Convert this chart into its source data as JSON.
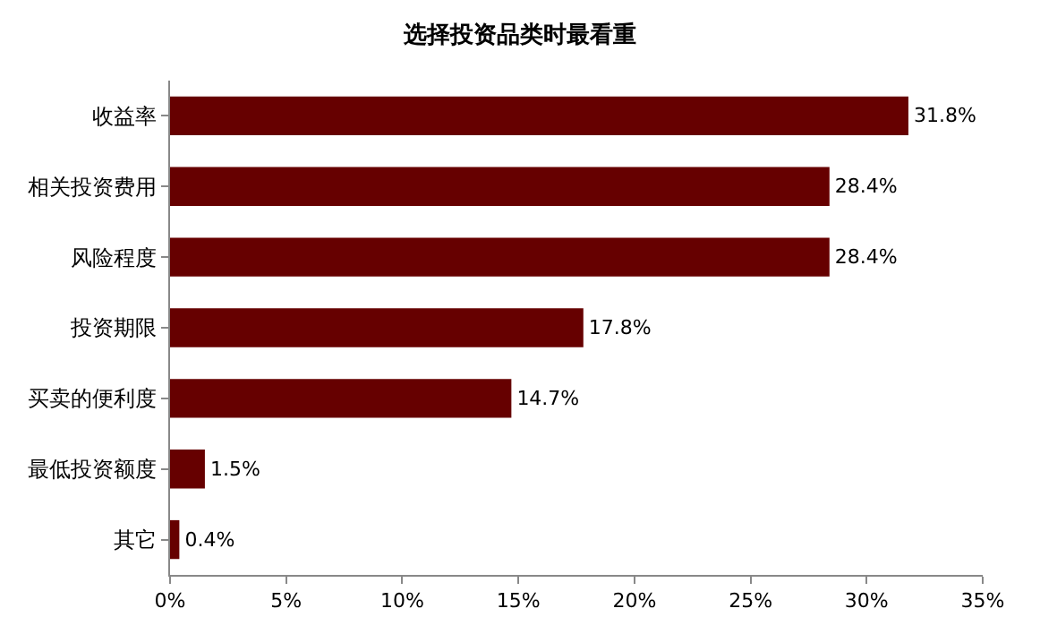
{
  "chart_data": {
    "type": "bar",
    "orientation": "horizontal",
    "title": "选择投资品类时最看重",
    "categories": [
      "收益率",
      "相关投资费用",
      "风险程度",
      "投资期限",
      "买卖的便利度",
      "最低投资额度",
      "其它"
    ],
    "values": [
      31.8,
      28.4,
      28.4,
      17.8,
      14.7,
      1.5,
      0.4
    ],
    "value_labels": [
      "31.8%",
      "28.4%",
      "28.4%",
      "17.8%",
      "14.7%",
      "1.5%",
      "0.4%"
    ],
    "color": "#660000",
    "xlim": [
      0,
      35
    ],
    "xticks": [
      {
        "value": 0,
        "label": "0%"
      },
      {
        "value": 5,
        "label": "5%"
      },
      {
        "value": 10,
        "label": "10%"
      },
      {
        "value": 15,
        "label": "15%"
      },
      {
        "value": 20,
        "label": "20%"
      },
      {
        "value": 25,
        "label": "25%"
      },
      {
        "value": 30,
        "label": "30%"
      },
      {
        "value": 35,
        "label": "35%"
      }
    ],
    "grid": false
  }
}
